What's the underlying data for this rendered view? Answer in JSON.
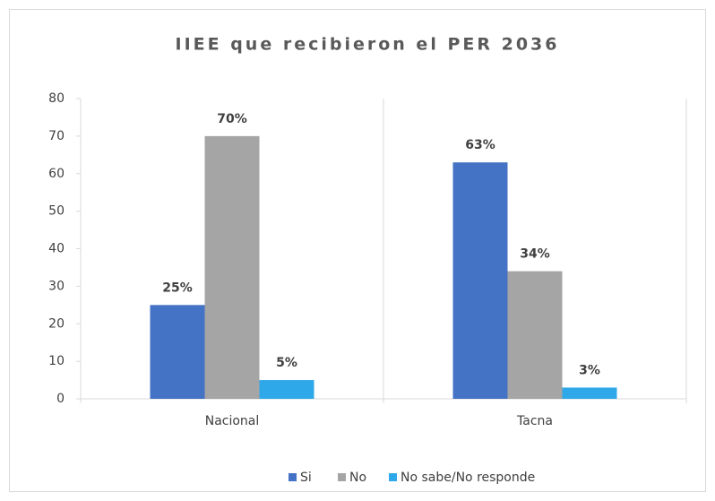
{
  "chart_data": {
    "type": "bar",
    "title": "IIEE que recibieron el PER 2036",
    "categories": [
      "Nacional",
      "Tacna"
    ],
    "series": [
      {
        "name": "Si",
        "color": "#4472c4",
        "values": [
          25,
          63
        ],
        "value_labels": [
          "25%",
          "63%"
        ]
      },
      {
        "name": "No",
        "color": "#a5a5a5",
        "values": [
          70,
          34
        ],
        "value_labels": [
          "70%",
          "34%"
        ]
      },
      {
        "name": "No sabe/No responde",
        "color": "#2ea8e8",
        "values": [
          5,
          3
        ],
        "value_labels": [
          "5%",
          "3%"
        ]
      }
    ],
    "ylim": [
      0,
      80
    ],
    "yticks": [
      0,
      10,
      20,
      30,
      40,
      50,
      60,
      70,
      80
    ],
    "grid": false,
    "legend": "bottom"
  }
}
